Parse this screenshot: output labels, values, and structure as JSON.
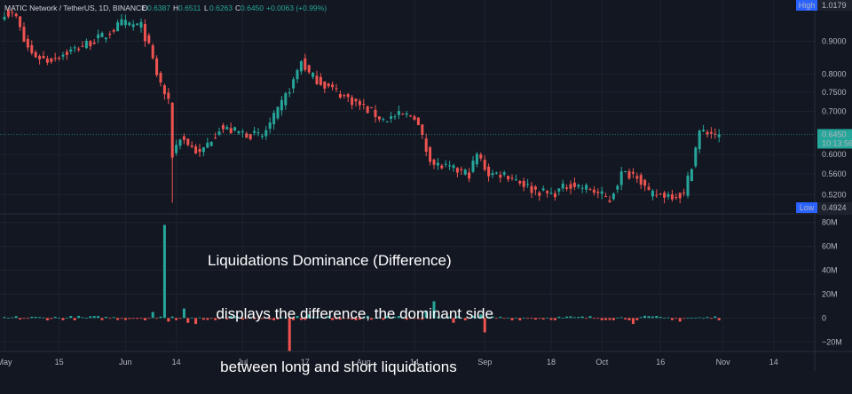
{
  "header": {
    "symbol": "MATIC Network / TetherUS, 1D, BINANCE",
    "ohlc": [
      {
        "label": "O",
        "value": "0.6387"
      },
      {
        "label": "H",
        "value": "0.6511"
      },
      {
        "label": "L",
        "value": "0.6263"
      },
      {
        "label": "C",
        "value": "0.6450"
      }
    ],
    "change": "+0.0063 (+0.99%)"
  },
  "badges": {
    "high_label": "High",
    "high_value": "1.0179",
    "low_label": "Low",
    "low_value": "0.4924",
    "last_price": "0.6450",
    "countdown": "10:13:56"
  },
  "overlay": {
    "lines": [
      "Liquidations Dominance (Difference)",
      "  displays the difference, the dominant side",
      "   between long and short liquidations"
    ]
  },
  "colors": {
    "background": "#131722",
    "up": "#26a69a",
    "down": "#ef5350",
    "grid": "#1e222d",
    "text": "#b2b5be"
  },
  "chart_data": [
    {
      "type": "candlestick",
      "name": "price",
      "x_ticks": [
        "May",
        "15",
        "Jun",
        "14",
        "Jul",
        "17",
        "Aug",
        "14",
        "Sep",
        "18",
        "Oct",
        "16",
        "Nov",
        "14"
      ],
      "y_ticks": [
        "0.9000",
        "0.8000",
        "0.7500",
        "0.7000",
        "0.6000",
        "0.5600",
        "0.5200"
      ],
      "scale": "log",
      "ylim": [
        0.49,
        1.03
      ],
      "anchors": [
        {
          "date": "2022-05-01",
          "close": 1.0
        },
        {
          "date": "2022-05-04",
          "close": 0.98
        },
        {
          "date": "2022-05-06",
          "close": 0.9
        },
        {
          "date": "2022-05-08",
          "close": 0.86
        },
        {
          "date": "2022-05-12",
          "close": 0.84
        },
        {
          "date": "2022-05-20",
          "close": 0.88
        },
        {
          "date": "2022-05-27",
          "close": 0.92
        },
        {
          "date": "2022-05-31",
          "close": 0.96
        },
        {
          "date": "2022-06-05",
          "close": 0.95
        },
        {
          "date": "2022-06-07",
          "close": 0.88
        },
        {
          "date": "2022-06-09",
          "close": 0.8
        },
        {
          "date": "2022-06-12",
          "close": 0.72
        },
        {
          "date": "2022-06-13",
          "close": 0.6
        },
        {
          "date": "2022-06-15",
          "close": 0.64
        },
        {
          "date": "2022-06-20",
          "close": 0.6
        },
        {
          "date": "2022-06-25",
          "close": 0.66
        },
        {
          "date": "2022-06-30",
          "close": 0.65
        },
        {
          "date": "2022-07-06",
          "close": 0.64
        },
        {
          "date": "2022-07-10",
          "close": 0.7
        },
        {
          "date": "2022-07-14",
          "close": 0.78
        },
        {
          "date": "2022-07-16",
          "close": 0.84
        },
        {
          "date": "2022-07-18",
          "close": 0.8
        },
        {
          "date": "2022-07-22",
          "close": 0.77
        },
        {
          "date": "2022-07-27",
          "close": 0.74
        },
        {
          "date": "2022-08-01",
          "close": 0.71
        },
        {
          "date": "2022-08-06",
          "close": 0.68
        },
        {
          "date": "2022-08-10",
          "close": 0.69
        },
        {
          "date": "2022-08-14",
          "close": 0.69
        },
        {
          "date": "2022-08-17",
          "close": 0.61
        },
        {
          "date": "2022-08-19",
          "close": 0.58
        },
        {
          "date": "2022-08-23",
          "close": 0.57
        },
        {
          "date": "2022-08-28",
          "close": 0.56
        },
        {
          "date": "2022-08-30",
          "close": 0.6
        },
        {
          "date": "2022-09-02",
          "close": 0.56
        },
        {
          "date": "2022-09-06",
          "close": 0.56
        },
        {
          "date": "2022-09-09",
          "close": 0.55
        },
        {
          "date": "2022-09-13",
          "close": 0.53
        },
        {
          "date": "2022-09-18",
          "close": 0.52
        },
        {
          "date": "2022-09-23",
          "close": 0.54
        },
        {
          "date": "2022-09-28",
          "close": 0.53
        },
        {
          "date": "2022-10-03",
          "close": 0.51
        },
        {
          "date": "2022-10-06",
          "close": 0.56
        },
        {
          "date": "2022-10-10",
          "close": 0.56
        },
        {
          "date": "2022-10-13",
          "close": 0.52
        },
        {
          "date": "2022-10-18",
          "close": 0.52
        },
        {
          "date": "2022-10-22",
          "close": 0.52
        },
        {
          "date": "2022-10-24",
          "close": 0.58
        },
        {
          "date": "2022-10-26",
          "close": 0.65
        },
        {
          "date": "2022-10-28",
          "close": 0.65
        },
        {
          "date": "2022-10-31",
          "close": 0.645
        }
      ]
    },
    {
      "type": "bar",
      "name": "liquidations-difference",
      "y_ticks": [
        "80M",
        "60M",
        "40M",
        "20M",
        "0",
        "−20M"
      ],
      "ylim": [
        -25,
        85
      ],
      "spikes": [
        {
          "date": "2022-06-11",
          "value": 78
        },
        {
          "date": "2022-06-08",
          "value": 5
        },
        {
          "date": "2022-06-12",
          "value": -3
        },
        {
          "date": "2022-06-16",
          "value": 8
        },
        {
          "date": "2022-06-17",
          "value": -4
        },
        {
          "date": "2022-06-19",
          "value": -5
        },
        {
          "date": "2022-07-13",
          "value": -28
        },
        {
          "date": "2022-07-18",
          "value": 3
        },
        {
          "date": "2022-08-17",
          "value": 6
        },
        {
          "date": "2022-08-19",
          "value": 14
        },
        {
          "date": "2022-08-24",
          "value": -4
        },
        {
          "date": "2022-09-01",
          "value": -12
        },
        {
          "date": "2022-08-31",
          "value": 3
        },
        {
          "date": "2022-10-09",
          "value": -5
        },
        {
          "date": "2022-10-21",
          "value": -3
        }
      ]
    }
  ]
}
